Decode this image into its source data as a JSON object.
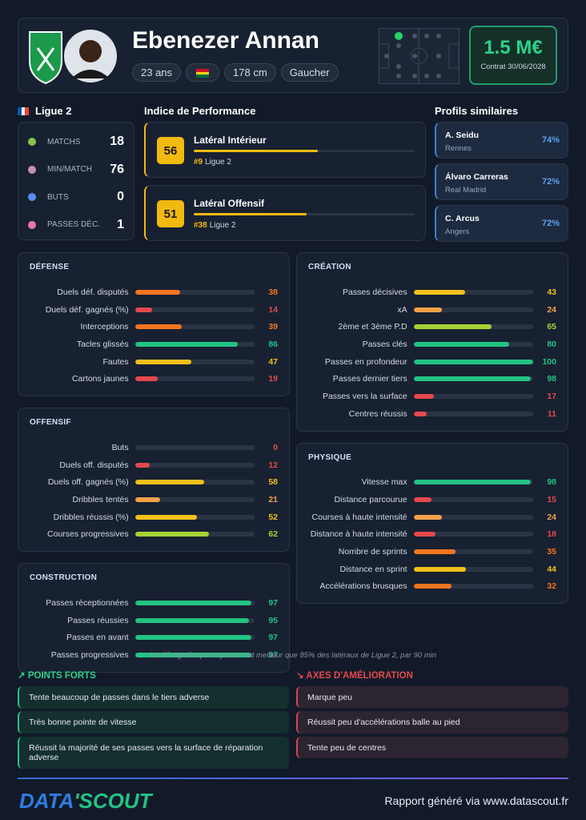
{
  "header": {
    "name": "Ebenezer Annan",
    "tags": [
      "23 ans",
      "178 cm",
      "Gaucher"
    ],
    "market_value": "1.5 M€",
    "contract": "Contrat 30/06/2028"
  },
  "league": {
    "name": "Ligue 2",
    "stats": [
      {
        "label": "MATCHS",
        "value": 18
      },
      {
        "label": "MIN/MATCH",
        "value": 76
      },
      {
        "label": "BUTS",
        "value": 0
      },
      {
        "label": "PASSES DÉC.",
        "value": 1
      }
    ]
  },
  "performance": {
    "title": "Indice de Performance",
    "items": [
      {
        "score": 56,
        "role": "Latéral Intérieur",
        "rank": "#9",
        "league": "Ligue 2"
      },
      {
        "score": 51,
        "role": "Latéral Offensif",
        "rank": "#38",
        "league": "Ligue 2"
      }
    ]
  },
  "similar": {
    "title": "Profils similaires",
    "players": [
      {
        "name": "A. Seidu",
        "club": "Rennes",
        "similarity": "74%"
      },
      {
        "name": "Álvaro Carreras",
        "club": "Real Madrid",
        "similarity": "72%"
      },
      {
        "name": "C. Arcus",
        "club": "Angers",
        "similarity": "72%"
      }
    ]
  },
  "sections": [
    {
      "title": "DÉFENSE",
      "rows": [
        {
          "label": "Duels déf. disputés",
          "value": 38
        },
        {
          "label": "Duels déf. gagnés (%)",
          "value": 14
        },
        {
          "label": "Interceptions",
          "value": 39
        },
        {
          "label": "Tacles glissés",
          "value": 86
        },
        {
          "label": "Fautes",
          "value": 47
        },
        {
          "label": "Cartons jaunes",
          "value": 19
        }
      ]
    },
    {
      "title": "OFFENSIF",
      "rows": [
        {
          "label": "Buts",
          "value": 0
        },
        {
          "label": "Duels off. disputés",
          "value": 12
        },
        {
          "label": "Duels off. gagnés (%)",
          "value": 58
        },
        {
          "label": "Dribbles tentés",
          "value": 21
        },
        {
          "label": "Dribbles réussis (%)",
          "value": 52
        },
        {
          "label": "Courses progressives",
          "value": 62
        }
      ]
    },
    {
      "title": "CONSTRUCTION",
      "rows": [
        {
          "label": "Passes réceptionnées",
          "value": 97
        },
        {
          "label": "Passes réussies",
          "value": 95
        },
        {
          "label": "Passes en avant",
          "value": 97
        },
        {
          "label": "Passes progressives",
          "value": 97
        }
      ]
    },
    {
      "title": "CRÉATION",
      "rows": [
        {
          "label": "Passes décisives",
          "value": 43
        },
        {
          "label": "xA",
          "value": 24
        },
        {
          "label": "2ème et 3ème P.D",
          "value": 65
        },
        {
          "label": "Passes clés",
          "value": 80
        },
        {
          "label": "Passes en profondeur",
          "value": 100
        },
        {
          "label": "Passes dernier tiers",
          "value": 98
        },
        {
          "label": "Passes vers la surface",
          "value": 17
        },
        {
          "label": "Centres réussis",
          "value": 11
        }
      ]
    },
    {
      "title": "PHYSIQUE",
      "rows": [
        {
          "label": "Vitesse max",
          "value": 98
        },
        {
          "label": "Distance parcourue",
          "value": 15
        },
        {
          "label": "Courses à haute intensité",
          "value": 24
        },
        {
          "label": "Distance à haute intensité",
          "value": 18
        },
        {
          "label": "Nombre de sprints",
          "value": 35
        },
        {
          "label": "Distance en sprint",
          "value": 44
        },
        {
          "label": "Accélérations brusques",
          "value": 32
        }
      ]
    }
  ],
  "footnote": "Un 85 signifie que le joueur est meilleur que 85% des latéraux de Ligue 2, par 90 min",
  "strengths": {
    "title": "POINTS FORTS",
    "items": [
      "Tente beaucoup de passes dans le tiers adverse",
      "Très bonne pointe de vitesse",
      "Réussit la majorité de ses passes vers la surface de réparation adverse"
    ]
  },
  "improvements": {
    "title": "AXES D'AMÉLIORATION",
    "items": [
      "Marque peu",
      "Réussit peu d'accélérations balle au pied",
      "Tente peu de centres"
    ]
  },
  "footer": {
    "brand": [
      "DATA",
      "'SCOUT"
    ],
    "report": "Rapport généré via www.datascout.fr"
  }
}
